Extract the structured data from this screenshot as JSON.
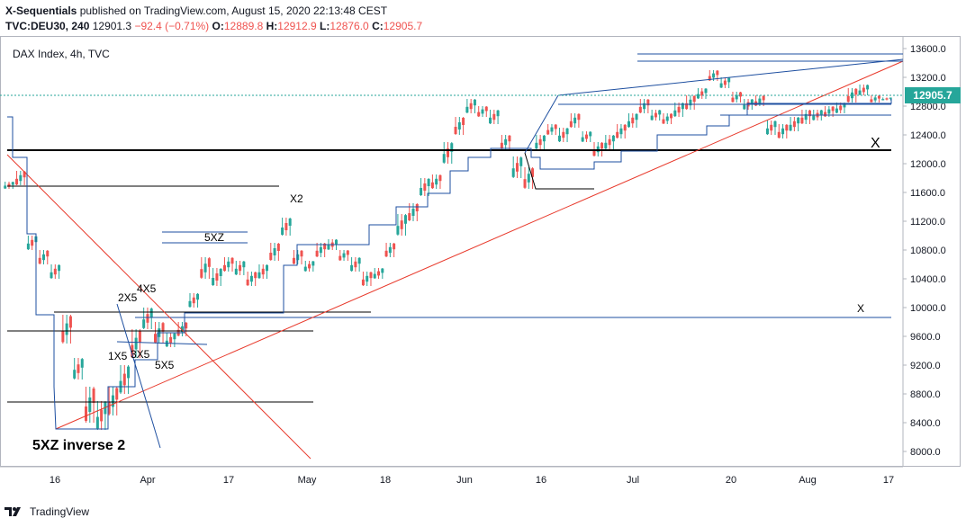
{
  "header": {
    "author": "X-Sequentials",
    "published": "published on TradingView.com, August 15, 2020 22:13:48 CEST",
    "symbol": "TVC:DEU30, 240",
    "last": "12901.3",
    "change": "−92.4 (−0.71%)",
    "o_label": "O:",
    "o": "12889.8",
    "h_label": "H:",
    "h": "12912.9",
    "l_label": "L:",
    "l": "12876.0",
    "c_label": "C:",
    "c": "12905.7"
  },
  "chart": {
    "legend_title": "DAX Index, 4h, TVC",
    "price_badge": "12905.7",
    "annotations": {
      "x2": "X2",
      "five_xz": "5XZ",
      "two_x5": "2X5",
      "four_x5": "4X5",
      "one_x5": "1X5",
      "three_x5": "3X5",
      "five_x5": "5X5",
      "x_big": "X",
      "x_small": "X",
      "bottom_label": "5XZ inverse 2"
    }
  },
  "chart_data": {
    "type": "candlestick",
    "y_ticks": [
      13600,
      13200,
      12800,
      12400,
      12000,
      11600,
      11200,
      10800,
      10400,
      10000,
      9600,
      9200,
      8800,
      8400,
      8000
    ],
    "y_tick_labels": [
      "13600.0",
      "13200.0",
      "12800.0",
      "12400.0",
      "12000.0",
      "11600.0",
      "11200.0",
      "10800.0",
      "10400.0",
      "10000.0",
      "9600.0",
      "9200.0",
      "8800.0",
      "8400.0",
      "8000.0"
    ],
    "x_tick_labels": [
      "16",
      "Apr",
      "17",
      "May",
      "18",
      "Jun",
      "16",
      "Jul",
      "20",
      "Aug",
      "17"
    ],
    "ylim": [
      7700,
      13750
    ],
    "last_price": 12905.7,
    "colors": {
      "up": "#26a69a",
      "down": "#ef5350",
      "levels": "#1e4fa0",
      "trend": "#e8392b",
      "support": "#000000"
    },
    "price_path": [
      [
        11650,
        11750
      ],
      [
        11700,
        11900
      ],
      [
        10800,
        11000
      ],
      [
        10600,
        10800
      ],
      [
        10400,
        10600
      ],
      [
        9500,
        9900
      ],
      [
        9000,
        9300
      ],
      [
        8400,
        8900
      ],
      [
        8300,
        8700
      ],
      [
        8500,
        8900
      ],
      [
        8800,
        9200
      ],
      [
        9300,
        9700
      ],
      [
        9700,
        10000
      ],
      [
        9500,
        9800
      ],
      [
        9450,
        9650
      ],
      [
        9600,
        9800
      ],
      [
        10000,
        10200
      ],
      [
        10400,
        10700
      ],
      [
        10300,
        10550
      ],
      [
        10500,
        10700
      ],
      [
        10450,
        10650
      ],
      [
        10300,
        10500
      ],
      [
        10400,
        10600
      ],
      [
        10650,
        10900
      ],
      [
        11000,
        11250
      ],
      [
        10600,
        10800
      ],
      [
        10500,
        10650
      ],
      [
        10700,
        10900
      ],
      [
        10800,
        10950
      ],
      [
        10650,
        10800
      ],
      [
        10500,
        10700
      ],
      [
        10300,
        10500
      ],
      [
        10400,
        10550
      ],
      [
        10700,
        10900
      ],
      [
        11000,
        11300
      ],
      [
        11200,
        11450
      ],
      [
        11550,
        11800
      ],
      [
        11650,
        11850
      ],
      [
        12000,
        12300
      ],
      [
        12400,
        12650
      ],
      [
        12700,
        12900
      ],
      [
        12650,
        12800
      ],
      [
        12550,
        12750
      ],
      [
        12200,
        12400
      ],
      [
        11800,
        12100
      ],
      [
        11650,
        11950
      ],
      [
        12200,
        12400
      ],
      [
        12400,
        12550
      ],
      [
        12300,
        12500
      ],
      [
        12500,
        12700
      ],
      [
        12300,
        12450
      ],
      [
        12100,
        12300
      ],
      [
        12200,
        12400
      ],
      [
        12350,
        12550
      ],
      [
        12500,
        12700
      ],
      [
        12700,
        12900
      ],
      [
        12600,
        12750
      ],
      [
        12550,
        12700
      ],
      [
        12650,
        12850
      ],
      [
        12750,
        12950
      ],
      [
        12900,
        13050
      ],
      [
        13150,
        13300
      ],
      [
        13050,
        13200
      ],
      [
        12850,
        13000
      ],
      [
        12750,
        12900
      ],
      [
        12800,
        12950
      ],
      [
        12400,
        12600
      ],
      [
        12350,
        12550
      ],
      [
        12450,
        12650
      ],
      [
        12550,
        12750
      ],
      [
        12600,
        12750
      ],
      [
        12650,
        12800
      ],
      [
        12700,
        12850
      ],
      [
        12850,
        13050
      ],
      [
        12950,
        13100
      ],
      [
        12850,
        12950
      ],
      [
        12880,
        12920
      ]
    ]
  }
}
